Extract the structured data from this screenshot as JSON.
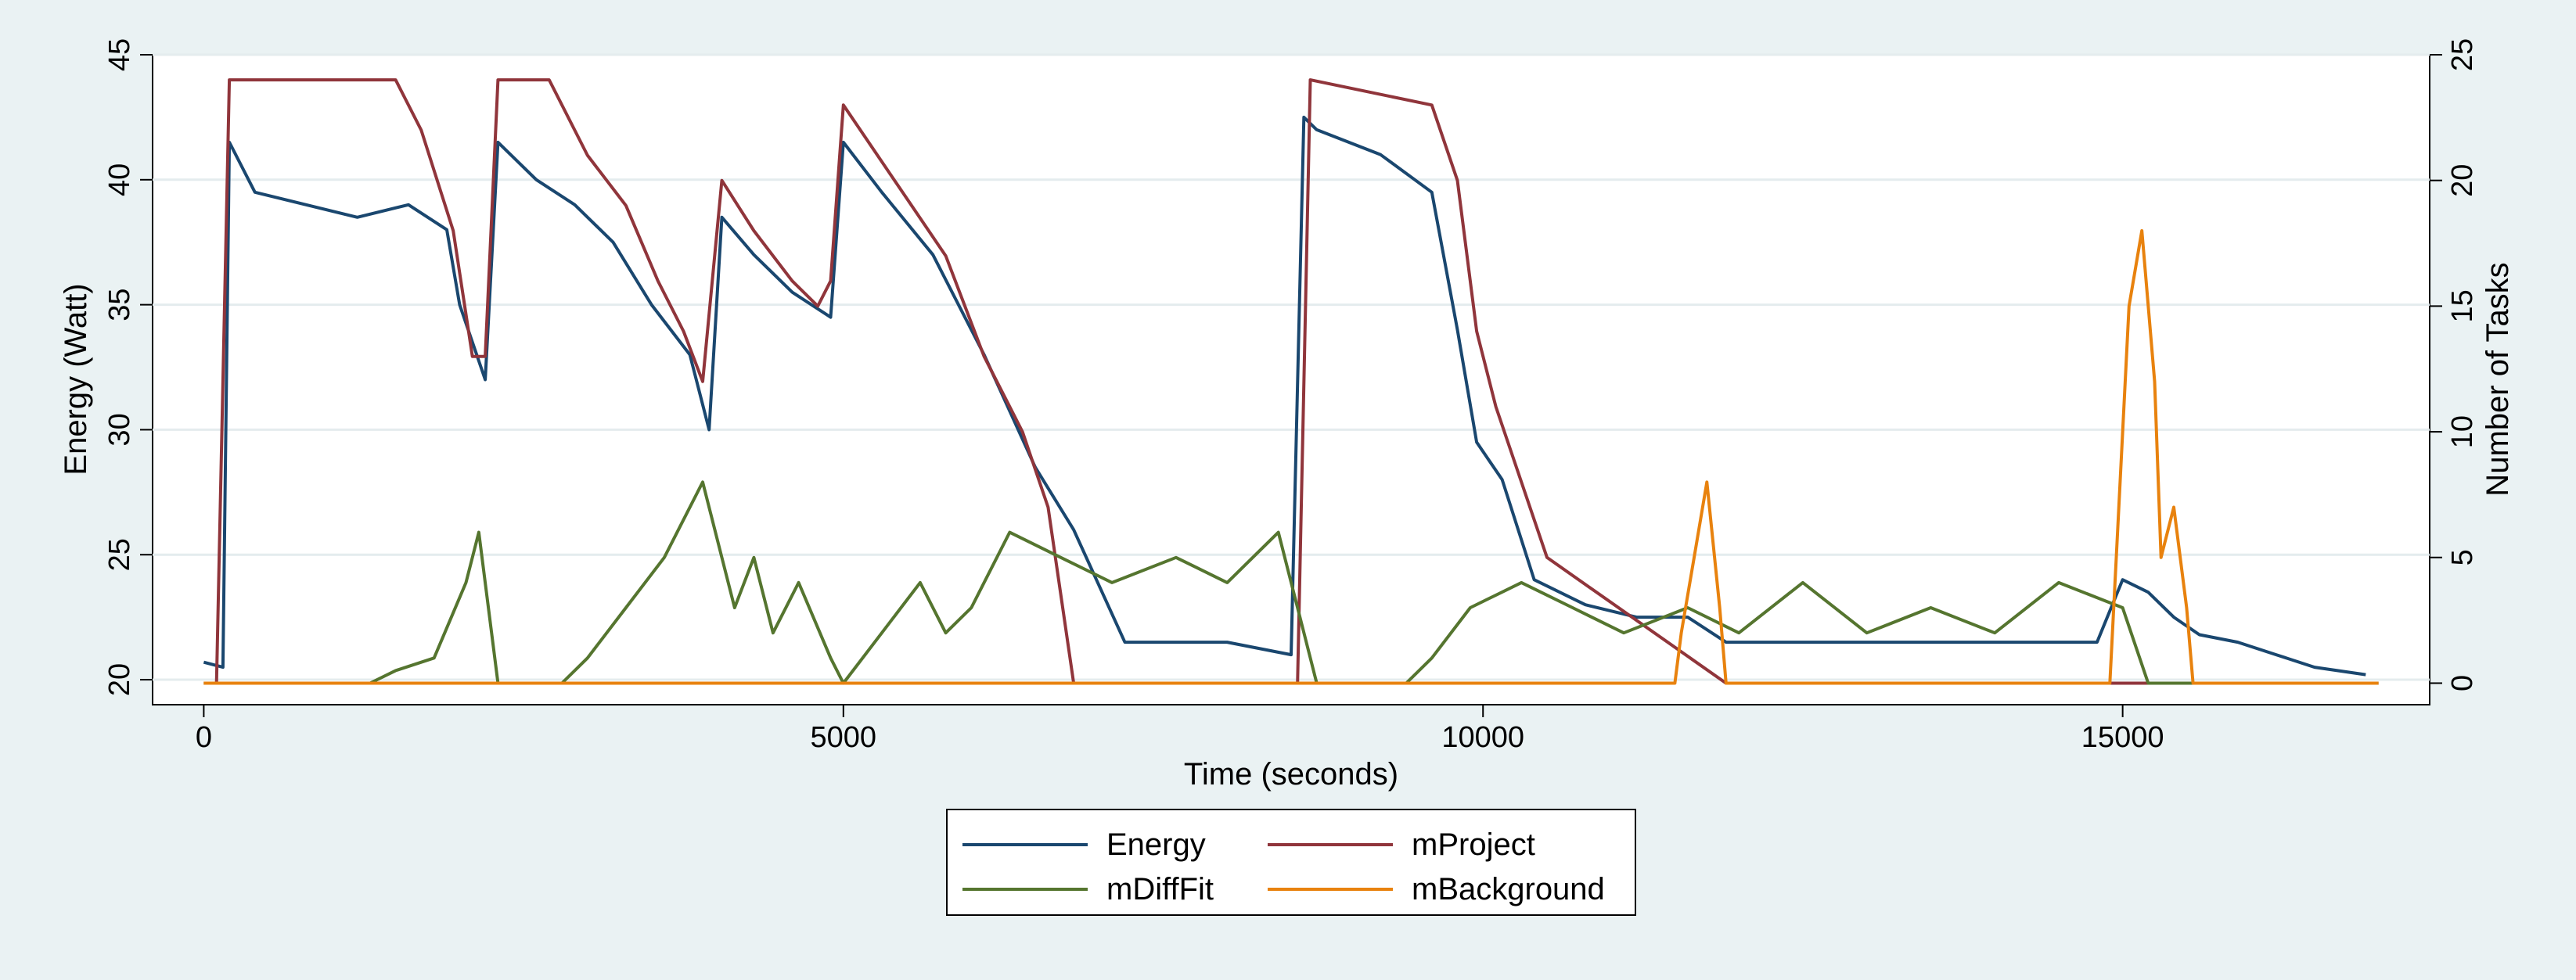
{
  "chart_data": {
    "type": "line",
    "title": "",
    "xlabel": "Time (seconds)",
    "ylabel": "Energy (Watt)",
    "y2label": "Number of Tasks",
    "xlim": [
      -400,
      17400
    ],
    "ylim": [
      19,
      45
    ],
    "y2lim": [
      -0.857,
      25.0
    ],
    "xticks": [
      0,
      5000,
      10000,
      15000
    ],
    "yticks": [
      20,
      25,
      30,
      35,
      40,
      45
    ],
    "y2ticks": [
      0,
      5,
      10,
      15,
      20,
      25
    ],
    "grid": true,
    "legend_position": "bottom-center",
    "series": [
      {
        "name": "Energy",
        "axis": "left",
        "color": "#1a476f",
        "x": [
          0,
          150,
          200,
          400,
          800,
          1200,
          1600,
          1900,
          2000,
          2200,
          2300,
          2600,
          2900,
          3200,
          3500,
          3800,
          3950,
          4050,
          4300,
          4600,
          4900,
          5000,
          5300,
          5700,
          6100,
          6500,
          6800,
          7200,
          7600,
          8000,
          8500,
          8600,
          8700,
          9200,
          9600,
          9800,
          9950,
          10150,
          10400,
          10800,
          11200,
          11600,
          11900,
          12300,
          12800,
          13300,
          13800,
          14300,
          14800,
          15000,
          15200,
          15400,
          15600,
          15900,
          16200,
          16500,
          16900
        ],
        "y": [
          20.7,
          20.5,
          41.5,
          39.5,
          39.0,
          38.5,
          39.0,
          38.0,
          35.0,
          32.0,
          41.5,
          40.0,
          39.0,
          37.5,
          35.0,
          33.0,
          30.0,
          38.5,
          37.0,
          35.5,
          34.5,
          41.5,
          39.5,
          37.0,
          33.0,
          28.5,
          26.0,
          21.5,
          21.5,
          21.5,
          21.0,
          42.5,
          42.0,
          41.0,
          39.5,
          34.0,
          29.5,
          28.0,
          24.0,
          23.0,
          22.5,
          22.5,
          21.5,
          21.5,
          21.5,
          21.5,
          21.5,
          21.5,
          21.5,
          24.0,
          23.5,
          22.5,
          21.8,
          21.5,
          21.0,
          20.5,
          20.2
        ]
      },
      {
        "name": "mProject",
        "axis": "right",
        "color": "#90353b",
        "x": [
          0,
          100,
          200,
          1500,
          1700,
          1950,
          2100,
          2200,
          2300,
          2700,
          3000,
          3300,
          3550,
          3750,
          3900,
          4050,
          4300,
          4600,
          4800,
          4900,
          5000,
          5400,
          5800,
          6100,
          6400,
          6600,
          6800,
          8550,
          8650,
          9600,
          9800,
          9950,
          10100,
          10300,
          10500,
          11900,
          17000
        ],
        "y": [
          0,
          0,
          24,
          24,
          22,
          18,
          13,
          13,
          24,
          24,
          21,
          19,
          16,
          14,
          12,
          20,
          18,
          16,
          15,
          16,
          23,
          20,
          17,
          13,
          10,
          7,
          0,
          0,
          24,
          23,
          20,
          14,
          11,
          8,
          5,
          0,
          0
        ]
      },
      {
        "name": "mDiffFit",
        "axis": "right",
        "color": "#55752f",
        "x": [
          0,
          1300,
          1500,
          1800,
          2050,
          2150,
          2300,
          2800,
          3000,
          3300,
          3600,
          3900,
          4150,
          4300,
          4450,
          4650,
          4900,
          5000,
          5300,
          5600,
          5800,
          6000,
          6300,
          6700,
          7100,
          7600,
          8000,
          8400,
          8550,
          8700,
          9400,
          9600,
          9900,
          10300,
          10700,
          11100,
          11600,
          12000,
          12500,
          13000,
          13500,
          14000,
          14500,
          15000,
          15200,
          17000
        ],
        "y": [
          0,
          0,
          0.5,
          1,
          4,
          6,
          0,
          0,
          1,
          3,
          5,
          8,
          3,
          5,
          2,
          4,
          1,
          0,
          2,
          4,
          2,
          3,
          6,
          5,
          4,
          5,
          4,
          6,
          3,
          0,
          0,
          1,
          3,
          4,
          3,
          2,
          3,
          2,
          4,
          2,
          3,
          2,
          4,
          3,
          0,
          0
        ]
      },
      {
        "name": "mBackground",
        "axis": "right",
        "color": "#e8820e",
        "x": [
          0,
          11500,
          11550,
          11650,
          11750,
          11850,
          11900,
          14900,
          14950,
          15050,
          15150,
          15250,
          15300,
          15400,
          15500,
          15550,
          17000
        ],
        "y": [
          0,
          0,
          2,
          5,
          8,
          3,
          0,
          0,
          5,
          15,
          18,
          12,
          5,
          7,
          3,
          0,
          0
        ]
      }
    ]
  }
}
